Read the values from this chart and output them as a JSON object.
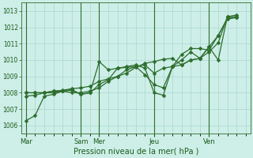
{
  "xlabel": "Pression niveau de la mer( hPa )",
  "bg_color": "#ceeee8",
  "grid_color": "#a8d8d0",
  "line_color": "#2d6e2d",
  "vline_color": "#2d6e2d",
  "ylim": [
    1005.5,
    1013.5
  ],
  "yticks": [
    1006,
    1007,
    1008,
    1009,
    1010,
    1011,
    1012,
    1013
  ],
  "day_labels": [
    "Mar",
    "Sam",
    "Mer",
    "Jeu",
    "Ven"
  ],
  "day_positions": [
    0,
    6,
    8,
    14,
    20
  ],
  "xlim": [
    -0.5,
    24.5
  ],
  "series": [
    [
      1006.3,
      1006.6,
      1007.8,
      1007.9,
      1008.1,
      1008.0,
      1008.0,
      1008.1,
      1008.3,
      1008.7,
      1009.0,
      1009.2,
      1009.55,
      1009.8,
      1009.9,
      1010.05,
      1010.1,
      1009.7,
      1010.0,
      1010.1,
      1010.8,
      1010.0,
      1012.65,
      1012.75
    ],
    [
      1008.0,
      1008.0,
      1008.0,
      1008.1,
      1008.15,
      1008.25,
      1008.3,
      1008.4,
      1008.7,
      1008.85,
      1009.0,
      1009.4,
      1009.6,
      1009.7,
      1009.2,
      1009.5,
      1009.6,
      1010.0,
      1010.5,
      1010.1,
      1010.8,
      1011.5,
      1012.5,
      1012.6
    ],
    [
      1008.0,
      1008.0,
      1008.0,
      1008.1,
      1008.1,
      1008.2,
      1007.9,
      1008.0,
      1009.9,
      1009.4,
      1009.5,
      1009.55,
      1009.6,
      1009.1,
      1008.5,
      1008.3,
      1009.6,
      1010.35,
      1010.7,
      1010.7,
      1010.6,
      1011.5,
      1012.55,
      1012.6
    ],
    [
      1007.8,
      1007.85,
      1008.0,
      1008.0,
      1008.1,
      1008.15,
      1007.9,
      1008.0,
      1008.5,
      1008.8,
      1009.5,
      1009.6,
      1009.7,
      1009.5,
      1008.0,
      1007.85,
      1009.6,
      1009.7,
      1010.0,
      1010.1,
      1010.5,
      1011.05,
      1012.65,
      1012.65
    ]
  ],
  "marker": "D",
  "marker_size": 2.5,
  "linewidth": 0.9
}
